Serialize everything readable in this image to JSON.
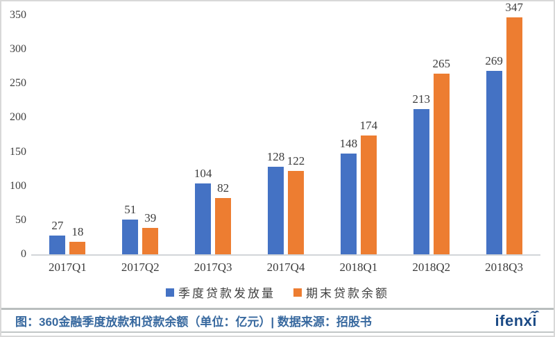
{
  "chart_data": {
    "type": "bar",
    "categories": [
      "2017Q1",
      "2017Q2",
      "2017Q3",
      "2017Q4",
      "2018Q1",
      "2018Q2",
      "2018Q3"
    ],
    "series": [
      {
        "name": "季度贷款发放量",
        "color": "#4472C4",
        "values": [
          27,
          51,
          104,
          128,
          148,
          213,
          269
        ]
      },
      {
        "name": "期末贷款余额",
        "color": "#ED7D31",
        "values": [
          18,
          39,
          82,
          122,
          174,
          265,
          347
        ]
      }
    ],
    "yticks": [
      0,
      50,
      100,
      150,
      200,
      250,
      300,
      350
    ],
    "ylim": [
      0,
      350
    ],
    "grid": false,
    "legend_position": "bottom",
    "title": "",
    "xlabel": "",
    "ylabel": ""
  },
  "footer": {
    "caption": "图：360金融季度放款和贷款余额（单位：亿元）| 数据来源：招股书",
    "logo_text": "ifenxi",
    "logo_color": "#1b4a85"
  },
  "colors": {
    "bar_blue": "#4472C4",
    "bar_orange": "#ED7D31",
    "caption_blue": "#38699f",
    "axis_line": "#d2d5d8"
  }
}
